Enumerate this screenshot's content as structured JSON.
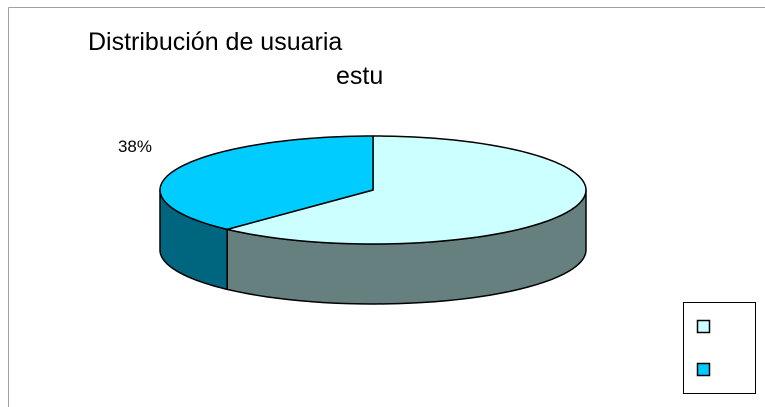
{
  "chart_data": {
    "type": "pie3d",
    "title": [
      "Distribución de usuaria",
      "estu"
    ],
    "categories": [
      null,
      null
    ],
    "values": [
      62,
      38
    ],
    "value_labels": [
      null,
      "38%"
    ],
    "colors": [
      "#ccffff",
      "#00ccff"
    ],
    "legend": "right"
  }
}
